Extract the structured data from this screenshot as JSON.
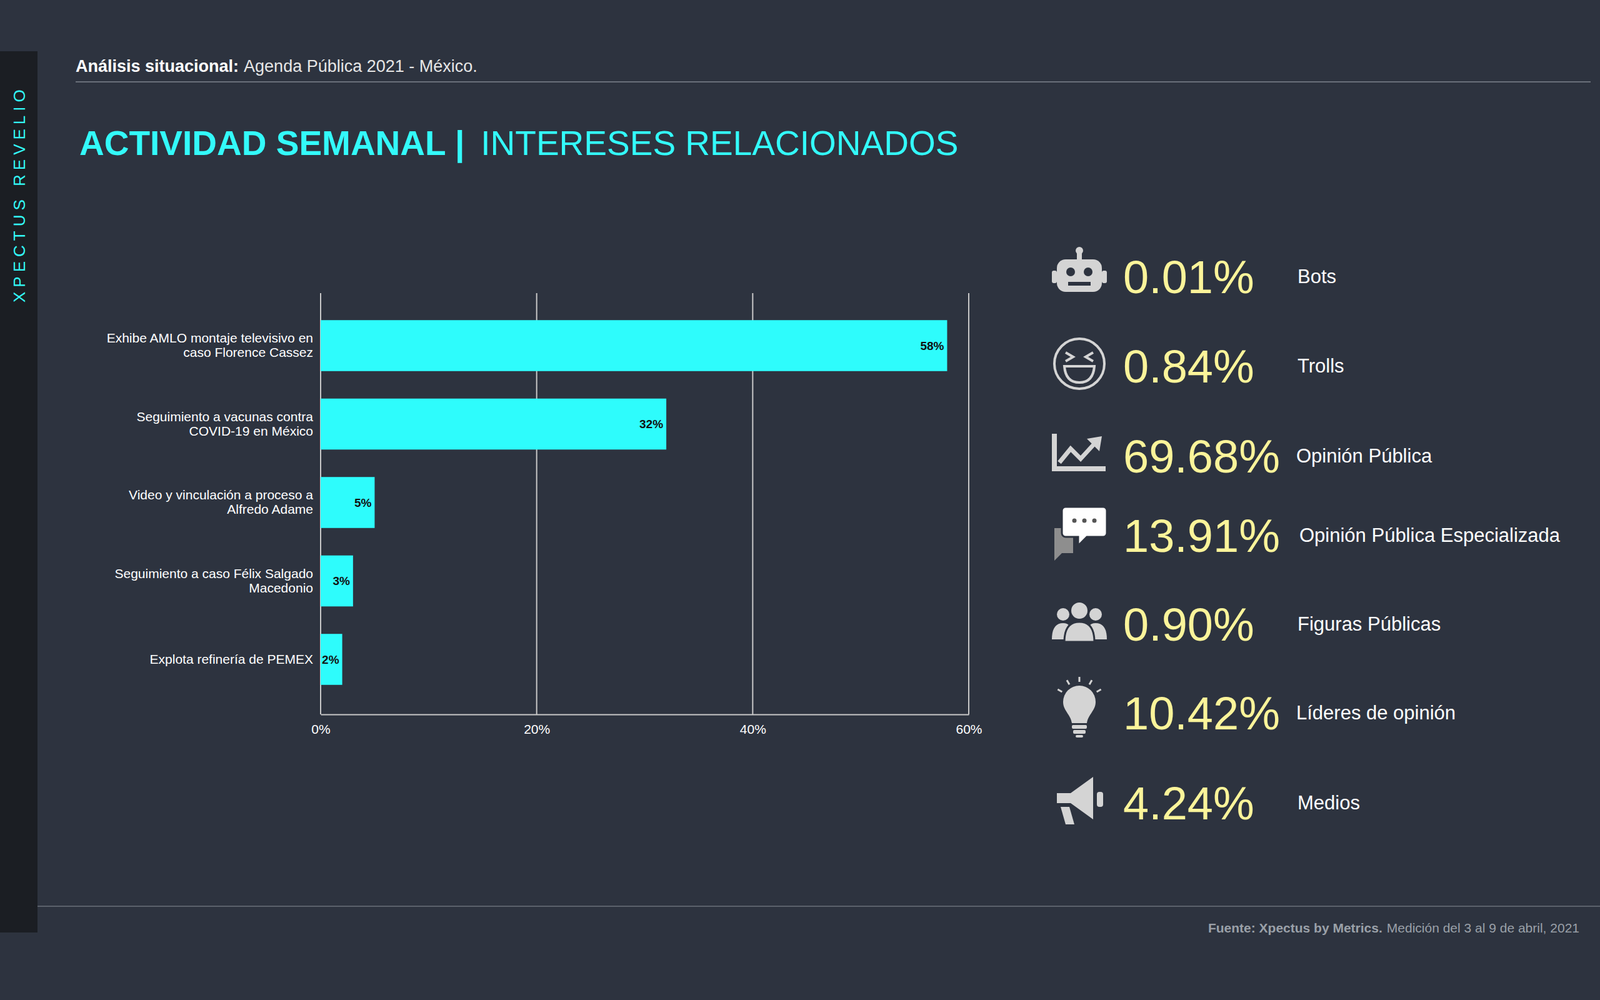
{
  "sidebar": "XPECTUS REVELIO",
  "header": {
    "label": "Análisis situacional:",
    "text": "Agenda Pública 2021 - México."
  },
  "title": {
    "bold": "ACTIVIDAD SEMANAL |",
    "regular": "INTERESES RELACIONADOS"
  },
  "chart_data": {
    "type": "bar",
    "orientation": "horizontal",
    "categories": [
      "Exhibe AMLO montaje televisivo en caso Florence Cassez",
      "Seguimiento a vacunas contra COVID-19 en México",
      "Video y vinculación a proceso a Alfredo Adame",
      "Seguimiento a caso Félix Salgado Macedonio",
      "Explota refinería de PEMEX"
    ],
    "values": [
      58,
      32,
      5,
      3,
      2
    ],
    "value_labels": [
      "58%",
      "32%",
      "5%",
      "3%",
      "2%"
    ],
    "data_labels": true,
    "color": "#2efcfc",
    "xlim": [
      0,
      60
    ],
    "xticks": [
      {
        "value": 0,
        "label": "0%"
      },
      {
        "value": 20,
        "label": "20%"
      },
      {
        "value": 40,
        "label": "40%"
      },
      {
        "value": 60,
        "label": "60%"
      }
    ],
    "grid": true
  },
  "stats": [
    {
      "value": "0.01%",
      "label": "Bots"
    },
    {
      "value": "0.84%",
      "label": "Trolls"
    },
    {
      "value": "69.68%",
      "label": "Opinión Pública"
    },
    {
      "value": "13.91%",
      "label": "Opinión Pública Especializada"
    },
    {
      "value": "0.90%",
      "label": "Figuras Públicas"
    },
    {
      "value": "10.42%",
      "label": "Líderes de opinión"
    },
    {
      "value": "4.24%",
      "label": "Medios"
    }
  ],
  "footer": {
    "source": "Fuente: Xpectus by Metrics.",
    "text": "Medición del 3 al 9 de abril, 2021"
  }
}
